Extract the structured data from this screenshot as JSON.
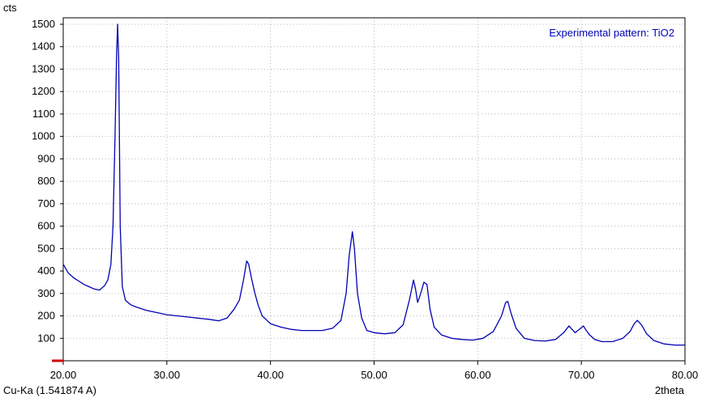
{
  "chart_data": {
    "type": "line",
    "legend_text": "Experimental pattern: TiO2",
    "y_unit_label": "cts",
    "x_axis_label": "2theta",
    "radiation_label": "Cu-Ka (1.541874 A)",
    "xlim": [
      20,
      80
    ],
    "ylim": [
      0,
      1500
    ],
    "x_ticks": [
      20,
      30,
      40,
      50,
      60,
      70,
      80
    ],
    "x_tick_labels": [
      "20.00",
      "30.00",
      "40.00",
      "50.00",
      "60.00",
      "70.00",
      "80.00"
    ],
    "y_ticks": [
      100,
      200,
      300,
      400,
      500,
      600,
      700,
      800,
      900,
      1000,
      1100,
      1200,
      1300,
      1400,
      1500
    ],
    "y_tick_labels": [
      "100",
      "200",
      "300",
      "400",
      "500",
      "600",
      "700",
      "800",
      "900",
      "1000",
      "1100",
      "1200",
      "1300",
      "1400",
      "1500"
    ],
    "grid": true,
    "legend_position": "top-right",
    "series_color": "#0000b4",
    "marker_color": "#cc0000",
    "series": [
      {
        "x": [
          20.0,
          20.5,
          21.0,
          21.5,
          22.0,
          22.5,
          23.0,
          23.5,
          24.0,
          24.3,
          24.6,
          24.8,
          25.0,
          25.15,
          25.25,
          25.35,
          25.5,
          25.7,
          26.0,
          26.5,
          27.0,
          28.0,
          29.0,
          30.0,
          31.0,
          32.0,
          33.0,
          34.0,
          35.0,
          35.8,
          36.5,
          37.0,
          37.4,
          37.7,
          37.9,
          38.2,
          38.5,
          38.8,
          39.2,
          40.0,
          41.0,
          42.0,
          43.0,
          44.0,
          45.0,
          46.0,
          46.8,
          47.3,
          47.6,
          47.9,
          48.1,
          48.4,
          48.8,
          49.3,
          50.0,
          51.0,
          52.0,
          52.8,
          53.4,
          53.8,
          54.0,
          54.2,
          54.5,
          54.8,
          55.1,
          55.4,
          55.8,
          56.5,
          57.5,
          58.5,
          59.5,
          60.5,
          61.5,
          62.3,
          62.7,
          62.9,
          63.2,
          63.7,
          64.5,
          65.5,
          66.5,
          67.5,
          68.3,
          68.8,
          69.0,
          69.4,
          69.8,
          70.2,
          70.4,
          70.8,
          71.3,
          72.0,
          73.0,
          74.0,
          74.7,
          75.1,
          75.4,
          75.8,
          76.3,
          77.0,
          78.0,
          79.0,
          80.0
        ],
        "values": [
          430,
          390,
          370,
          355,
          340,
          330,
          320,
          315,
          335,
          360,
          430,
          600,
          1000,
          1360,
          1500,
          1350,
          600,
          330,
          270,
          250,
          240,
          225,
          215,
          205,
          200,
          195,
          190,
          185,
          178,
          190,
          230,
          270,
          360,
          445,
          430,
          360,
          300,
          250,
          200,
          165,
          150,
          140,
          135,
          135,
          135,
          145,
          180,
          300,
          470,
          575,
          500,
          300,
          190,
          135,
          125,
          120,
          125,
          160,
          270,
          360,
          320,
          260,
          300,
          350,
          340,
          230,
          150,
          115,
          100,
          95,
          92,
          100,
          130,
          200,
          260,
          265,
          215,
          145,
          100,
          90,
          88,
          95,
          125,
          155,
          145,
          125,
          140,
          155,
          140,
          115,
          95,
          85,
          85,
          100,
          130,
          165,
          180,
          160,
          120,
          90,
          75,
          70,
          70
        ]
      }
    ]
  }
}
